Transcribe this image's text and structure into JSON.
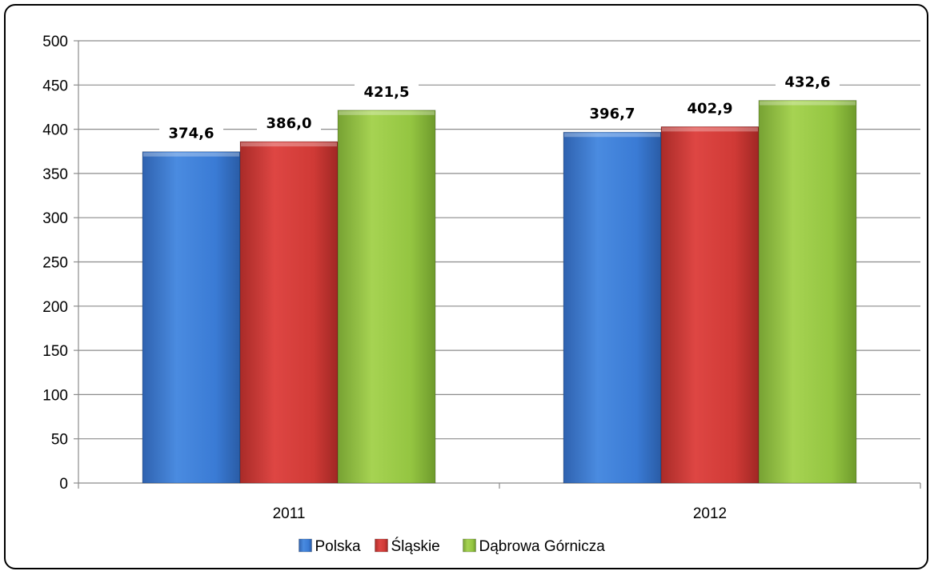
{
  "chart_data": {
    "type": "bar",
    "title": "",
    "xlabel": "",
    "ylabel": "",
    "categories": [
      "2011",
      "2012"
    ],
    "ylim": [
      0,
      500
    ],
    "yticks": [
      0,
      50,
      100,
      150,
      200,
      250,
      300,
      350,
      400,
      450,
      500
    ],
    "ytick_labels": [
      "0",
      "50",
      "100",
      "150",
      "200",
      "250",
      "300",
      "350",
      "400",
      "450",
      "500"
    ],
    "grid": true,
    "legend_position": "bottom",
    "series": [
      {
        "name": "Polska",
        "color": "#3A7BD5",
        "values": [
          374.6,
          396.7
        ],
        "labels": [
          "374,6",
          "396,7"
        ]
      },
      {
        "name": "Śląskie",
        "color": "#D03A36",
        "values": [
          386.0,
          402.9
        ],
        "labels": [
          "386,0",
          "402,9"
        ]
      },
      {
        "name": "Dąbrowa Górnicza",
        "color": "#94C541",
        "values": [
          421.5,
          432.6
        ],
        "labels": [
          "421,5",
          "432,6"
        ]
      }
    ]
  }
}
